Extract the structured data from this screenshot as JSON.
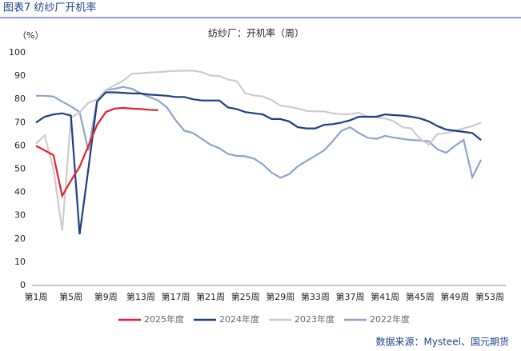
{
  "header": {
    "title": "图表7 纺纱厂开机率"
  },
  "chart_data": {
    "type": "line",
    "title": "纺纱厂：开机率（周）",
    "y_unit": "（%）",
    "categories": [
      "第1周",
      null,
      null,
      null,
      "第5周",
      null,
      null,
      null,
      "第9周",
      null,
      null,
      null,
      "第13周",
      null,
      null,
      null,
      "第17周",
      null,
      null,
      null,
      "第21周",
      null,
      null,
      null,
      "第25周",
      null,
      null,
      null,
      "第29周",
      null,
      null,
      null,
      "第33周",
      null,
      null,
      null,
      "第37周",
      null,
      null,
      null,
      "第41周",
      null,
      null,
      null,
      "第45周",
      null,
      null,
      null,
      "第49周",
      null,
      null,
      null,
      "第53周"
    ],
    "ylim": [
      0,
      100
    ],
    "yticks": [
      0,
      10,
      20,
      30,
      40,
      50,
      60,
      70,
      80,
      90,
      100
    ],
    "series": [
      {
        "name": "2025年度",
        "color": "#e8202a",
        "values": [
          60,
          58,
          56,
          38.5,
          45,
          51,
          60,
          69,
          74.5,
          76,
          76.3,
          76,
          75.8,
          75.5,
          75.3,
          null,
          null,
          null,
          null,
          null,
          null,
          null,
          null,
          null,
          null,
          null,
          null,
          null,
          null,
          null,
          null,
          null,
          null,
          null,
          null,
          null,
          null,
          null,
          null,
          null,
          null,
          null,
          null,
          null,
          null,
          null,
          null,
          null,
          null,
          null,
          null,
          null,
          null
        ]
      },
      {
        "name": "2024年度",
        "color": "#1f3f7f",
        "values": [
          70,
          72.5,
          73.5,
          74,
          73,
          22,
          50,
          79,
          83,
          83,
          82.8,
          82.5,
          82.5,
          82,
          81.8,
          81.5,
          81,
          81,
          80,
          79.5,
          79.5,
          79.5,
          76.5,
          75.8,
          74.5,
          74,
          73.5,
          71.5,
          71.5,
          70.5,
          68,
          67.5,
          67.5,
          69,
          69.3,
          70,
          71,
          72.5,
          72.5,
          72.5,
          73.5,
          73.2,
          73,
          72.5,
          71.8,
          70.5,
          68.5,
          67,
          66.5,
          66,
          65.5,
          62.5,
          null
        ]
      },
      {
        "name": "2023年度",
        "color": "#cccccc",
        "values": [
          61,
          64.5,
          50,
          23.5,
          72,
          74.5,
          78.5,
          80,
          84,
          86,
          88,
          91,
          91.2,
          91.5,
          91.7,
          92,
          92.2,
          92.3,
          92.3,
          91.7,
          90.2,
          90,
          88.5,
          87.8,
          82.5,
          81.7,
          81.2,
          79.7,
          77.3,
          76.8,
          76,
          75,
          74.8,
          74.8,
          74,
          73.6,
          73.6,
          74.2,
          72.5,
          72.3,
          71.8,
          70.5,
          68,
          67.5,
          63,
          60.5,
          65,
          65.5,
          66.5,
          67.5,
          68.5,
          70,
          null
        ]
      },
      {
        "name": "2022年度",
        "color": "#8ea4c8",
        "values": [
          81.5,
          81.5,
          81.2,
          79,
          77,
          74.5,
          58,
          79.5,
          84,
          84.5,
          85.3,
          84.5,
          82.5,
          81,
          79.5,
          76.5,
          71,
          66.5,
          65.5,
          63,
          60.5,
          59,
          56.5,
          55.7,
          55.5,
          54.5,
          52,
          48.5,
          46.3,
          47.8,
          51.2,
          53.5,
          55.7,
          58,
          62,
          66.5,
          68,
          65.5,
          63.5,
          63,
          64.3,
          63.5,
          63,
          62.5,
          62.3,
          62,
          58.5,
          57,
          60,
          62.5,
          46.5,
          54,
          null
        ]
      }
    ]
  },
  "source": "数据来源：Mysteel、国元期货"
}
